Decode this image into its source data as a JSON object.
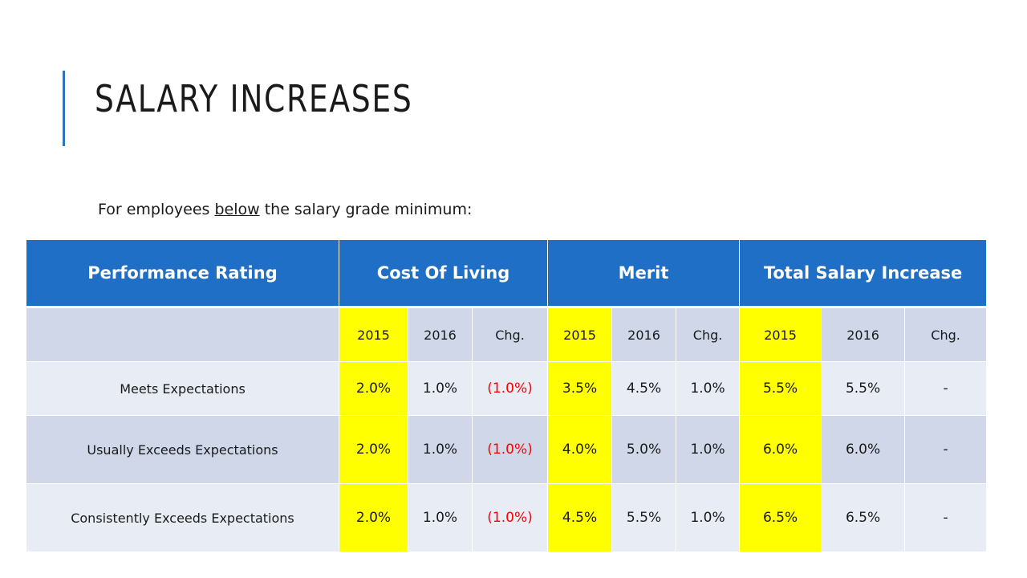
{
  "title": "SALARY INCREASES",
  "subtitle": {
    "prefix": "For employees ",
    "emphasis": "below",
    "suffix": " the salary grade minimum:"
  },
  "table": {
    "headers": [
      "Performance Rating",
      "Cost Of Living",
      "Merit",
      "Total Salary Increase"
    ],
    "subheaders": [
      "2015",
      "2016",
      "Chg.",
      "2015",
      "2016",
      "Chg.",
      "2015",
      "2016",
      "Chg."
    ],
    "rows": [
      {
        "rating": "Meets Expectations",
        "values": [
          "2.0%",
          "1.0%",
          "(1.0%)",
          "3.5%",
          "4.5%",
          "1.0%",
          "5.5%",
          "5.5%",
          "-"
        ]
      },
      {
        "rating": "Usually Exceeds Expectations",
        "values": [
          "2.0%",
          "1.0%",
          "(1.0%)",
          "4.0%",
          "5.0%",
          "1.0%",
          "6.0%",
          "6.0%",
          "-"
        ]
      },
      {
        "rating": "Consistently Exceeds Expectations",
        "values": [
          "2.0%",
          "1.0%",
          "(1.0%)",
          "4.5%",
          "5.5%",
          "1.0%",
          "6.5%",
          "6.5%",
          "-"
        ]
      }
    ]
  },
  "colors": {
    "accent": "#2e75b6",
    "header_bg": "#1f6fc6",
    "highlight": "#ffff00",
    "negative": "#ff0000",
    "row_dark": "#cfd7e9",
    "row_light": "#e8ecf4"
  }
}
